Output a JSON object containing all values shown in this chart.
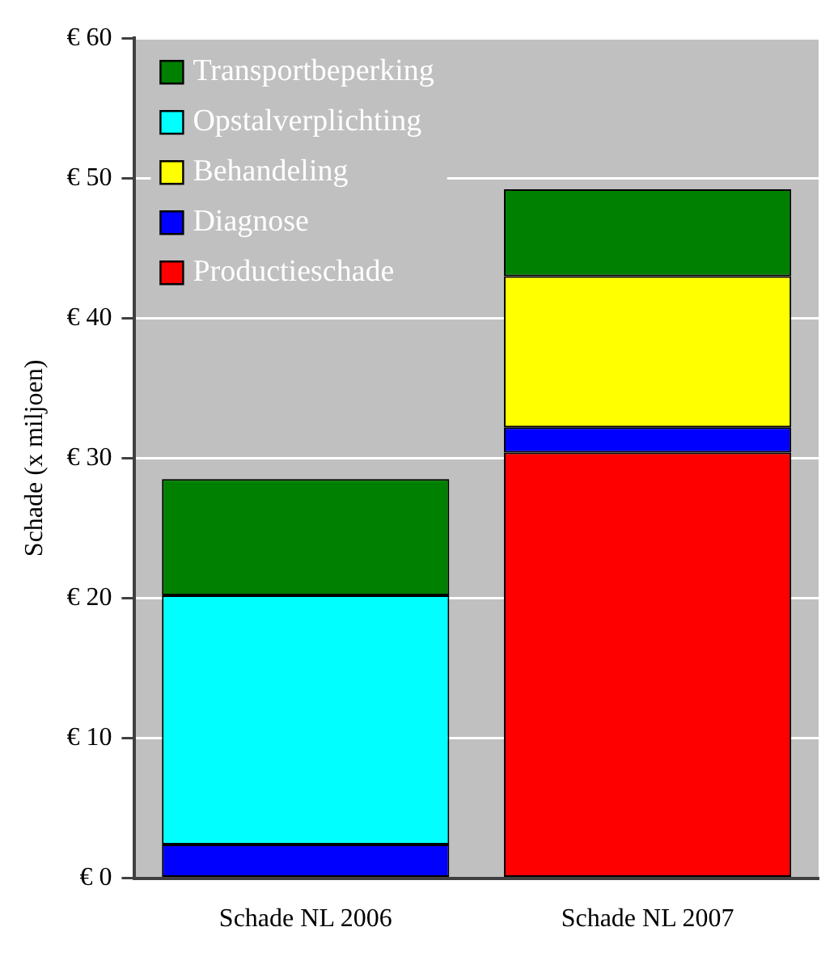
{
  "chart_data": {
    "type": "bar",
    "ylabel": "Schade (x miljoen)",
    "categories": [
      "Schade NL 2006",
      "Schade NL 2007"
    ],
    "stacked": true,
    "series": [
      {
        "name": "Productieschade",
        "color": "#ff0000",
        "values": [
          null,
          30.4
        ]
      },
      {
        "name": "Diagnose",
        "color": "#0000ff",
        "values": [
          2.4,
          1.8
        ]
      },
      {
        "name": "Behandeling",
        "color": "#ffff00",
        "values": [
          null,
          10.8
        ]
      },
      {
        "name": "Opstalverplichting",
        "color": "#00ffff",
        "values": [
          17.8,
          null
        ]
      },
      {
        "name": "Transportbeperking",
        "color": "#008000",
        "values": [
          8.3,
          6.2
        ]
      }
    ],
    "ylim": [
      0,
      60
    ],
    "yticks": [
      {
        "value": 0,
        "label": "€ 0"
      },
      {
        "value": 10,
        "label": "€ 10"
      },
      {
        "value": 20,
        "label": "€ 20"
      },
      {
        "value": 30,
        "label": "€ 30"
      },
      {
        "value": 40,
        "label": "€ 40"
      },
      {
        "value": 50,
        "label": "€ 50"
      },
      {
        "value": 60,
        "label": "€ 60"
      }
    ],
    "grid": "y",
    "legend": "top left"
  }
}
